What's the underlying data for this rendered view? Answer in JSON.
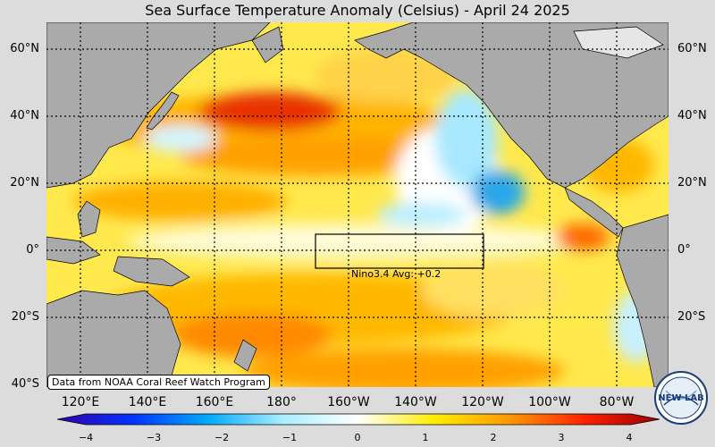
{
  "title": "Sea Surface Temperature Anomaly (Celsius) - April 24 2025",
  "latitude_labels": [
    "60°N",
    "40°N",
    "20°N",
    "0°",
    "20°S",
    "40°S"
  ],
  "longitude_labels": [
    "120°E",
    "140°E",
    "160°E",
    "180°",
    "160°W",
    "140°W",
    "120°W",
    "100°W",
    "80°W"
  ],
  "nino_box_label": "Nino3.4 Avg: +0.2",
  "credit": "Data from NOAA Coral Reef Watch Program",
  "colorbar": {
    "tick_labels": [
      "−4",
      "−3",
      "−2",
      "−1",
      "0",
      "1",
      "2",
      "3",
      "4"
    ],
    "min": -4,
    "max": 4,
    "colors": [
      "#3300aa",
      "#0033ff",
      "#00aaff",
      "#aaeeff",
      "#ffffff",
      "#ffee00",
      "#ff9900",
      "#ff2200",
      "#990000"
    ]
  },
  "logo_text": "NEW LAB",
  "colors": {
    "land": "#aaaaaa",
    "ocean_warm_light": "#ffe94d",
    "ocean_warm": "#ffb300",
    "ocean_hot": "#e83000",
    "ocean_neutral": "#ffffff",
    "ocean_cool": "#9fe7ff",
    "ocean_cold": "#2aa7e8",
    "background": "#dcdcdc"
  }
}
